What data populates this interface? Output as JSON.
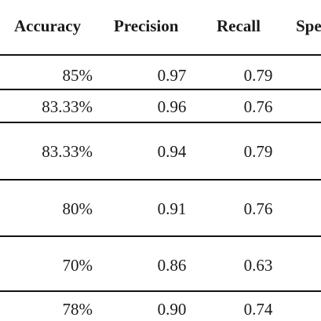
{
  "headers": {
    "accuracy": "Accuracy",
    "precision": "Precision",
    "recall": "Recall",
    "specificity_partial": "Spe"
  },
  "rows": [
    {
      "accuracy": "85%",
      "precision": "0.97",
      "recall": "0.79"
    },
    {
      "accuracy": "83.33%",
      "precision": "0.96",
      "recall": "0.76"
    },
    {
      "accuracy": "83.33%",
      "precision": "0.94",
      "recall": "0.79"
    },
    {
      "accuracy": "80%",
      "precision": "0.91",
      "recall": "0.76"
    },
    {
      "accuracy": "70%",
      "precision": "0.86",
      "recall": "0.63"
    },
    {
      "accuracy": "78%",
      "precision": "0.90",
      "recall": "0.74"
    }
  ]
}
